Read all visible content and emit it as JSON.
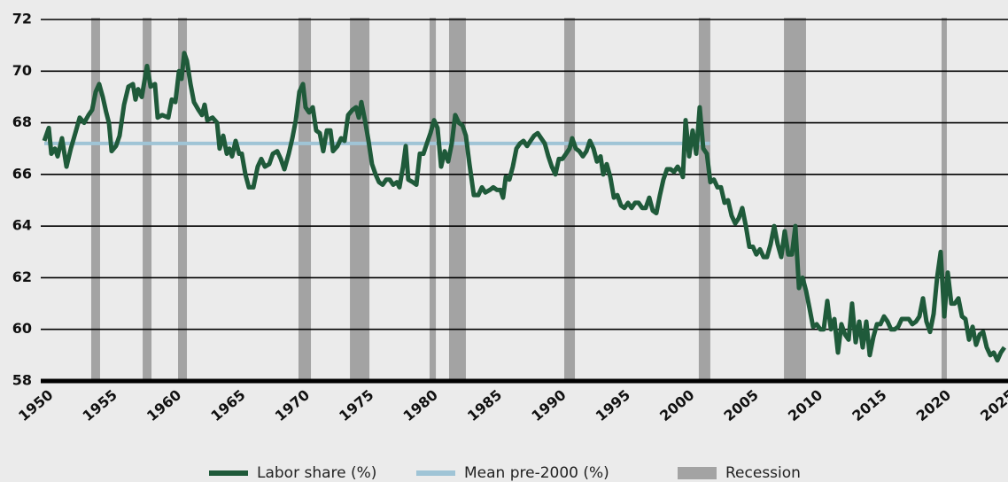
{
  "chart_data": {
    "type": "line",
    "xlim": [
      1950,
      2025
    ],
    "xticks": [
      1950,
      1955,
      1960,
      1965,
      1970,
      1975,
      1980,
      1985,
      1990,
      1995,
      2000,
      2005,
      2010,
      2015,
      2020,
      2025
    ],
    "ylim": [
      58,
      72
    ],
    "yticks": [
      58,
      60,
      62,
      64,
      66,
      68,
      70,
      72
    ],
    "grid": true,
    "series": [
      {
        "name": "Labor share (%)",
        "color": "#1f5a3a",
        "x": [
          1950.0,
          1950.35,
          1950.55,
          1950.83,
          1951.04,
          1951.38,
          1951.73,
          1952.07,
          1952.42,
          1952.76,
          1953.11,
          1953.45,
          1953.73,
          1954.01,
          1954.28,
          1954.56,
          1954.83,
          1955.04,
          1955.25,
          1955.59,
          1955.87,
          1956.22,
          1956.56,
          1956.91,
          1957.11,
          1957.32,
          1957.6,
          1958.01,
          1958.29,
          1958.63,
          1958.84,
          1959.19,
          1959.67,
          1959.94,
          1960.22,
          1960.5,
          1960.7,
          1960.91,
          1961.12,
          1961.4,
          1961.67,
          1962.02,
          1962.29,
          1962.5,
          1962.71,
          1963.12,
          1963.47,
          1963.67,
          1963.95,
          1964.23,
          1964.43,
          1964.64,
          1964.92,
          1965.19,
          1965.4,
          1965.68,
          1965.95,
          1966.3,
          1966.64,
          1966.92,
          1967.2,
          1967.54,
          1967.82,
          1968.16,
          1968.44,
          1968.72,
          1969.06,
          1969.34,
          1969.61,
          1969.89,
          1970.17,
          1970.37,
          1970.65,
          1970.93,
          1971.2,
          1971.48,
          1971.75,
          1972.03,
          1972.31,
          1972.51,
          1972.86,
          1973.14,
          1973.41,
          1973.69,
          1974.03,
          1974.31,
          1974.52,
          1974.72,
          1975.0,
          1975.28,
          1975.55,
          1975.83,
          1976.1,
          1976.38,
          1976.66,
          1976.93,
          1977.21,
          1977.49,
          1977.69,
          1977.97,
          1978.18,
          1978.38,
          1978.73,
          1979.01,
          1979.28,
          1979.56,
          1979.83,
          1980.11,
          1980.39,
          1980.66,
          1980.94,
          1981.22,
          1981.49,
          1981.77,
          1982.04,
          1982.32,
          1982.6,
          1982.87,
          1983.15,
          1983.49,
          1983.84,
          1984.12,
          1984.39,
          1984.74,
          1985.01,
          1985.29,
          1985.57,
          1985.77,
          1985.98,
          1986.26,
          1986.53,
          1986.81,
          1987.09,
          1987.36,
          1987.64,
          1987.91,
          1988.19,
          1988.47,
          1988.74,
          1989.02,
          1989.3,
          1989.57,
          1989.85,
          1990.12,
          1990.4,
          1990.68,
          1990.95,
          1991.16,
          1991.44,
          1991.71,
          1991.99,
          1992.27,
          1992.54,
          1992.82,
          1993.09,
          1993.37,
          1993.58,
          1993.85,
          1994.13,
          1994.41,
          1994.68,
          1994.96,
          1995.23,
          1995.51,
          1995.79,
          1996.06,
          1996.34,
          1996.62,
          1996.89,
          1997.17,
          1997.44,
          1997.72,
          1998.0,
          1998.27,
          1998.55,
          1998.83,
          1999.1,
          1999.38,
          1999.65,
          1999.79,
          2000.0,
          2000.28,
          2000.55,
          2000.83,
          2001.1,
          2001.38,
          2001.66,
          2001.93,
          2002.21,
          2002.49,
          2002.76,
          2003.04,
          2003.31,
          2003.59,
          2003.87,
          2004.14,
          2004.42,
          2004.7,
          2004.97,
          2005.25,
          2005.52,
          2005.8,
          2006.08,
          2006.35,
          2006.63,
          2006.91,
          2007.18,
          2007.46,
          2007.73,
          2008.01,
          2008.29,
          2008.56,
          2008.84,
          2009.12,
          2009.39,
          2009.67,
          2009.94,
          2010.22,
          2010.5,
          2010.77,
          2011.05,
          2011.33,
          2011.6,
          2011.88,
          2012.15,
          2012.43,
          2012.71,
          2012.98,
          2013.26,
          2013.54,
          2013.81,
          2014.09,
          2014.36,
          2014.64,
          2014.92,
          2015.19,
          2015.47,
          2015.75,
          2016.02,
          2016.3,
          2016.57,
          2016.85,
          2017.13,
          2017.4,
          2017.68,
          2017.96,
          2018.23,
          2018.51,
          2018.78,
          2019.06,
          2019.34,
          2019.61,
          2019.89,
          2020.17,
          2020.44,
          2020.72,
          2020.99,
          2021.27,
          2021.55,
          2021.82,
          2022.1,
          2022.38,
          2022.65,
          2022.93,
          2023.2,
          2023.48,
          2023.76,
          2024.03,
          2024.31,
          2024.58,
          2024.86
        ],
        "values": [
          67.3,
          67.8,
          66.8,
          67.0,
          66.7,
          67.4,
          66.3,
          67.0,
          67.6,
          68.2,
          68.0,
          68.3,
          68.5,
          69.2,
          69.5,
          69.0,
          68.4,
          68.0,
          66.9,
          67.1,
          67.5,
          68.7,
          69.4,
          69.5,
          68.9,
          69.3,
          69.0,
          70.2,
          69.4,
          69.5,
          68.2,
          68.3,
          68.2,
          68.9,
          68.8,
          70.0,
          69.7,
          70.7,
          70.4,
          69.5,
          68.8,
          68.5,
          68.3,
          68.7,
          68.1,
          68.2,
          68.0,
          67.0,
          67.5,
          66.8,
          67.0,
          66.7,
          67.3,
          66.8,
          66.8,
          66.0,
          65.5,
          65.5,
          66.3,
          66.6,
          66.3,
          66.4,
          66.8,
          66.9,
          66.6,
          66.2,
          66.8,
          67.4,
          68.1,
          69.2,
          69.5,
          68.6,
          68.4,
          68.6,
          67.7,
          67.6,
          66.9,
          67.7,
          67.7,
          66.9,
          67.1,
          67.4,
          67.3,
          68.3,
          68.5,
          68.6,
          68.2,
          68.8,
          68.1,
          67.3,
          66.4,
          66.0,
          65.7,
          65.6,
          65.8,
          65.8,
          65.6,
          65.7,
          65.5,
          66.3,
          67.1,
          65.8,
          65.7,
          65.6,
          66.8,
          66.8,
          67.2,
          67.6,
          68.1,
          67.8,
          66.3,
          66.9,
          66.5,
          67.2,
          68.3,
          68.0,
          67.9,
          67.5,
          66.4,
          65.2,
          65.2,
          65.5,
          65.3,
          65.4,
          65.5,
          65.4,
          65.4,
          65.1,
          65.9,
          65.8,
          66.3,
          67.0,
          67.2,
          67.3,
          67.1,
          67.3,
          67.5,
          67.6,
          67.4,
          67.2,
          66.7,
          66.3,
          66.0,
          66.6,
          66.6,
          66.8,
          67.0,
          67.4,
          67.0,
          66.9,
          66.7,
          66.9,
          67.3,
          67.0,
          66.5,
          66.7,
          66.0,
          66.4,
          65.9,
          65.1,
          65.2,
          64.8,
          64.7,
          64.9,
          64.7,
          64.9,
          64.9,
          64.7,
          64.7,
          65.1,
          64.6,
          64.5,
          65.2,
          65.8,
          66.2,
          66.2,
          66.1,
          66.3,
          66.1,
          65.9,
          68.1,
          66.7,
          67.7,
          66.8,
          68.6,
          67.0,
          66.8,
          65.7,
          65.8,
          65.5,
          65.5,
          64.9,
          65.0,
          64.4,
          64.1,
          64.3,
          64.7,
          64.0,
          63.2,
          63.2,
          62.9,
          63.1,
          62.8,
          62.8,
          63.3,
          64.0,
          63.3,
          62.8,
          63.8,
          62.9,
          62.9,
          64.0,
          61.6,
          62.0,
          61.5,
          60.8,
          60.1,
          60.2,
          60.0,
          60.0,
          61.1,
          60.0,
          60.4,
          59.1,
          60.2,
          59.8,
          59.6,
          61.0,
          59.5,
          60.3,
          59.3,
          60.3,
          59.0,
          59.7,
          60.2,
          60.2,
          60.5,
          60.3,
          60.0,
          60.0,
          60.1,
          60.4,
          60.4,
          60.4,
          60.2,
          60.3,
          60.5,
          61.2,
          60.3,
          59.9,
          60.6,
          62.0,
          63.0,
          60.5,
          62.2,
          61.0,
          61.0,
          61.2,
          60.5,
          60.4,
          59.6,
          60.1,
          59.4,
          59.8,
          59.9,
          59.3,
          59.0,
          59.1,
          58.8,
          59.1,
          59.3
        ]
      },
      {
        "name": "Mean pre-2000 (%)",
        "color": "#9fc4d6",
        "x": [
          1950,
          2001.9
        ],
        "values": [
          67.2,
          67.2
        ]
      }
    ],
    "recessions": {
      "name": "Recession",
      "color": "#a3a3a3",
      "periods": [
        [
          1953.66,
          1954.35
        ],
        [
          1957.67,
          1958.36
        ],
        [
          1960.43,
          1961.12
        ],
        [
          1969.82,
          1970.79
        ],
        [
          1973.83,
          1975.35
        ],
        [
          1980.04,
          1980.53
        ],
        [
          1981.56,
          1982.87
        ],
        [
          1990.54,
          1991.37
        ],
        [
          2001.03,
          2001.93
        ],
        [
          2007.67,
          2009.39
        ],
        [
          2019.96,
          2020.37
        ]
      ]
    }
  }
}
